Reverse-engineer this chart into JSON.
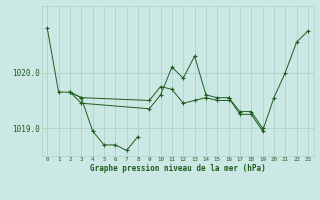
{
  "background_color": "#cce8e4",
  "grid_color": "#aad4cc",
  "line_color": "#1e5c1e",
  "xlabel_label": "Graphe pression niveau de la mer (hPa)",
  "xticks": [
    0,
    1,
    2,
    3,
    4,
    5,
    6,
    7,
    8,
    9,
    10,
    11,
    12,
    13,
    14,
    15,
    16,
    17,
    18,
    19,
    20,
    21,
    22,
    23
  ],
  "ylim": [
    1018.5,
    1021.2
  ],
  "yticks": [
    1019.0,
    1020.0
  ],
  "series": [
    [
      1020.8,
      1019.65,
      1019.65,
      1019.55,
      1018.95,
      1018.7,
      1018.7,
      1018.6,
      1018.85,
      null,
      null,
      null,
      null,
      null,
      null,
      null,
      null,
      null,
      null,
      null,
      null,
      null,
      null,
      null
    ],
    [
      null,
      null,
      1019.65,
      1019.55,
      null,
      null,
      null,
      null,
      null,
      1019.5,
      1019.75,
      1019.7,
      1019.45,
      1019.5,
      1019.55,
      1019.5,
      1019.5,
      null,
      null,
      null,
      null,
      null,
      null,
      null
    ],
    [
      null,
      null,
      1019.65,
      1019.45,
      null,
      null,
      null,
      null,
      null,
      1019.35,
      1019.6,
      1020.1,
      1019.9,
      1020.3,
      1019.6,
      1019.55,
      1019.55,
      1019.3,
      1019.3,
      1019.0,
      null,
      null,
      null,
      null
    ],
    [
      null,
      null,
      null,
      null,
      null,
      null,
      null,
      null,
      null,
      null,
      null,
      null,
      null,
      null,
      null,
      null,
      1019.55,
      1019.25,
      1019.25,
      1018.95,
      1019.55,
      1020.0,
      1020.55,
      1020.75
    ]
  ]
}
